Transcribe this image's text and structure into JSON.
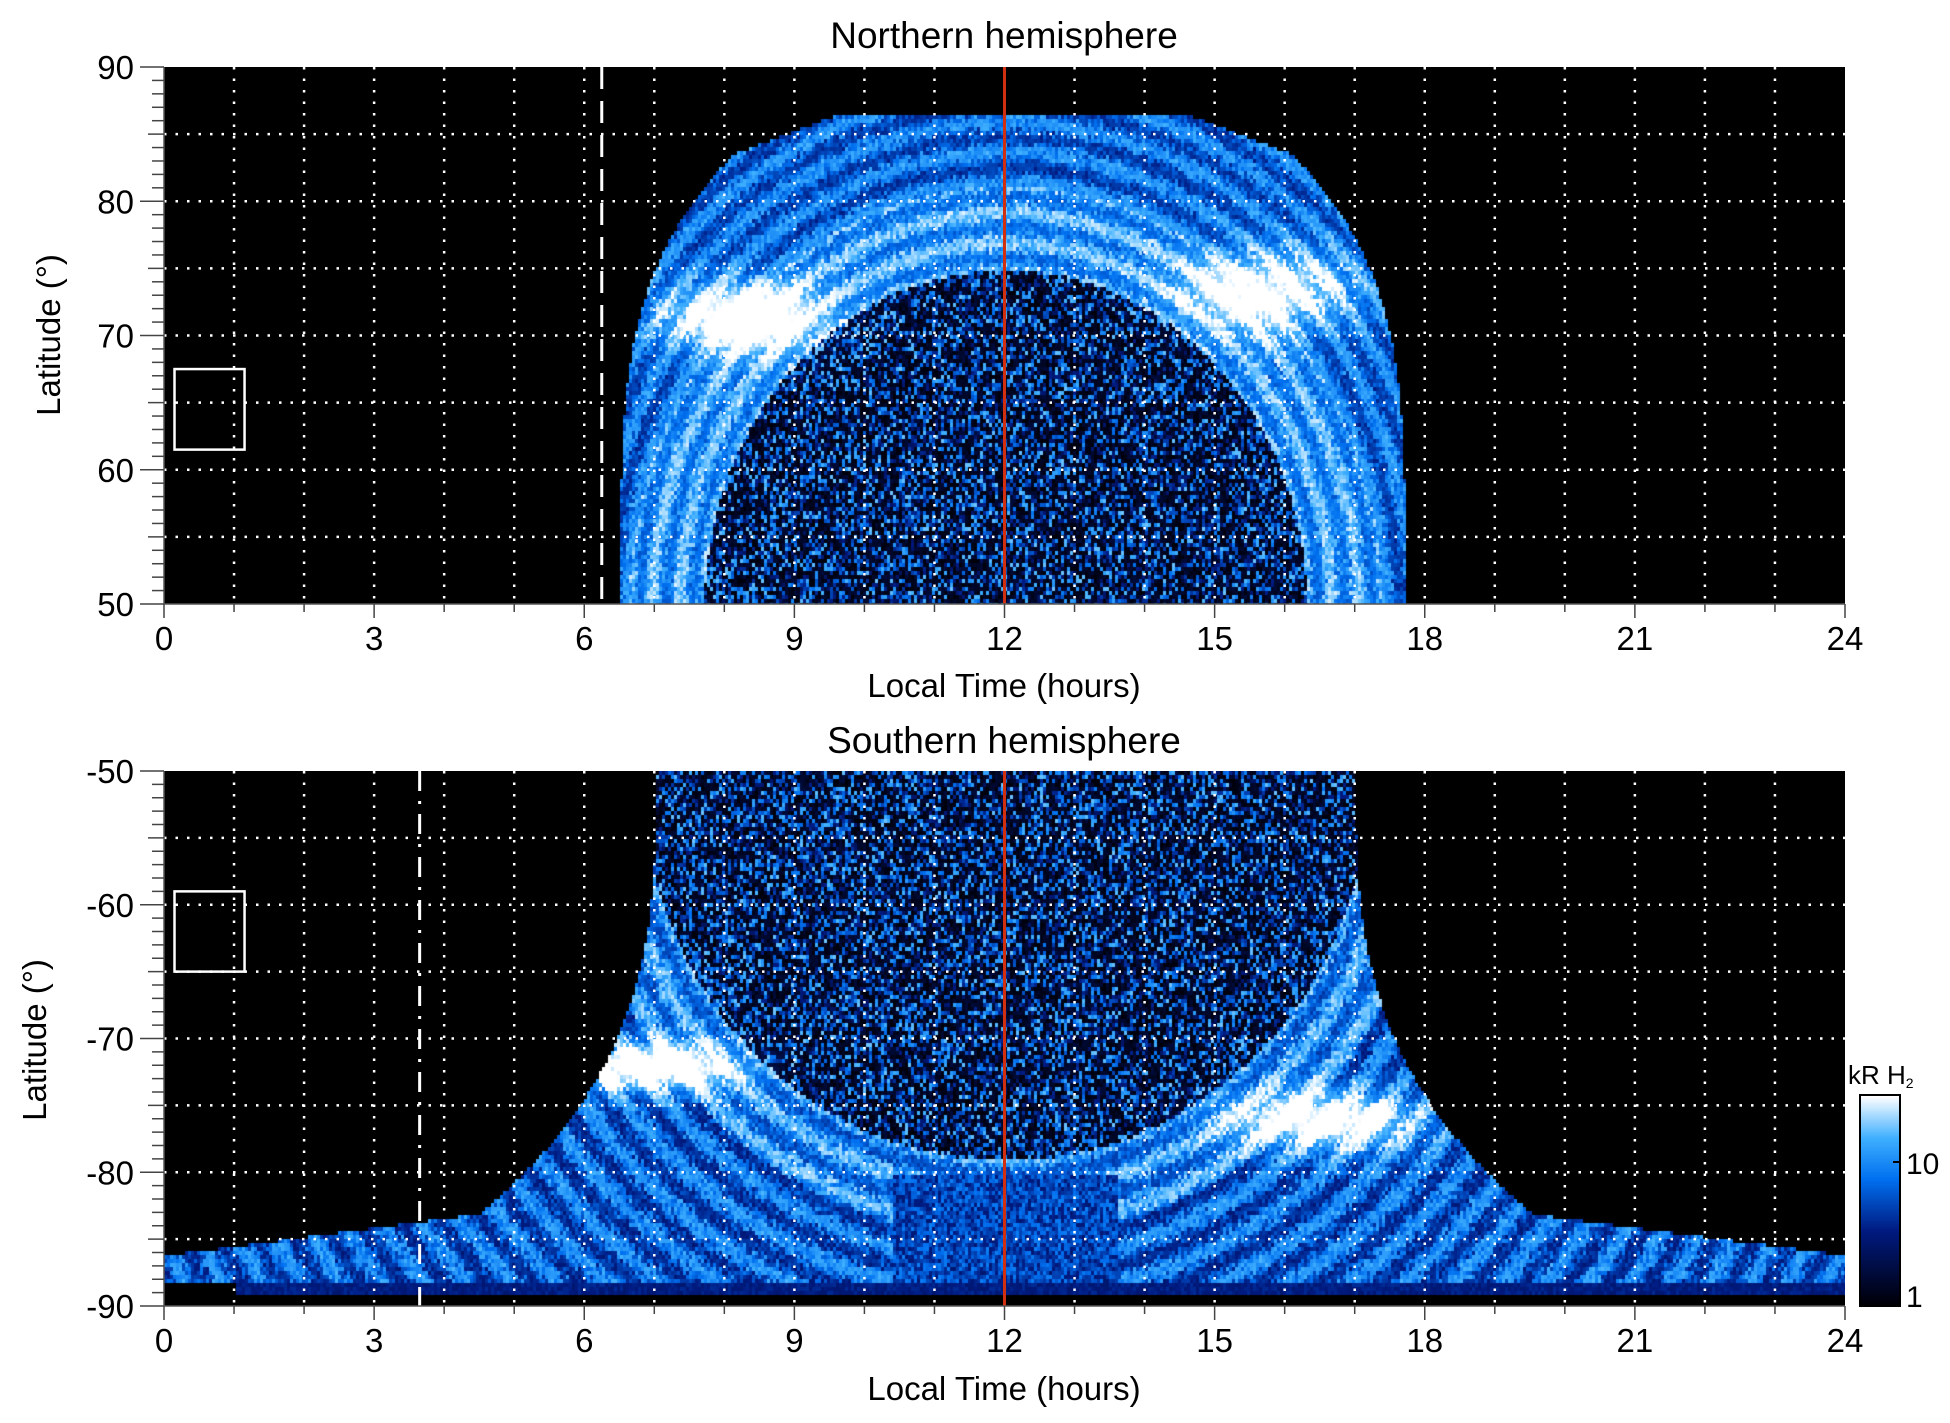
{
  "chart_data": [
    {
      "type": "heatmap",
      "title": "Northern hemisphere",
      "xlabel": "Local Time (hours)",
      "ylabel": "Latitude (°)",
      "xlim": [
        0,
        24
      ],
      "ylim": [
        50,
        90
      ],
      "xticks": [
        "0",
        "3",
        "6",
        "9",
        "12",
        "15",
        "18",
        "21",
        "24"
      ],
      "yticks": [
        "50",
        "60",
        "70",
        "80",
        "90"
      ],
      "grid": true,
      "grid_x_step_hours": 1,
      "grid_y_step_deg": 5,
      "red_line_lt": 12,
      "dashed_line_lt": 6.25,
      "box": {
        "lt": [
          0.15,
          1.15
        ],
        "lat": [
          61.5,
          67.5
        ]
      },
      "bright_arc_lat": 72
    },
    {
      "type": "heatmap",
      "title": "Southern hemisphere",
      "xlabel": "Local Time (hours)",
      "ylabel": "Latitude (°)",
      "xlim": [
        0,
        24
      ],
      "ylim": [
        -90,
        -50
      ],
      "xticks": [
        "0",
        "3",
        "6",
        "9",
        "12",
        "15",
        "18",
        "21",
        "24"
      ],
      "yticks": [
        "-90",
        "-80",
        "-70",
        "-60",
        "-50"
      ],
      "grid": true,
      "grid_x_step_hours": 1,
      "grid_y_step_deg": 5,
      "red_line_lt": 12,
      "dashdot_line_lt": 3.65,
      "box": {
        "lt": [
          0.15,
          1.15
        ],
        "lat": [
          -65,
          -59
        ]
      },
      "bright_arc_lat": -73
    }
  ],
  "colorbar": {
    "label": "kR H",
    "label_sub": "2",
    "scale": "log",
    "range": [
      1,
      30
    ],
    "ticks": [
      "1",
      "10"
    ],
    "colors": [
      "#000008",
      "#001a80",
      "#0070f0",
      "#40b0ff",
      "#ffffff"
    ]
  },
  "colors": {
    "red_line": "#d03010",
    "grid": "#ffffff",
    "background": "#000000"
  }
}
